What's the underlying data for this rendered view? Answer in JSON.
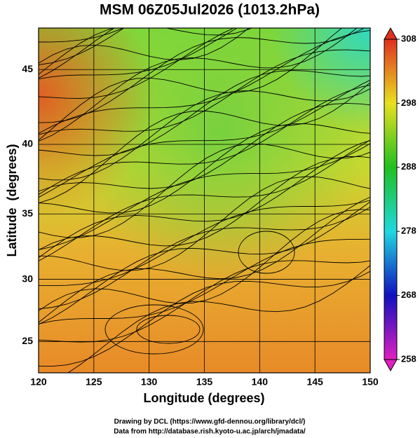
{
  "chart_data": {
    "type": "map",
    "title": "MSM 06Z05Jul2026 (1013.2hPa)",
    "x_label": "Longitude (degrees)",
    "y_label": "Latitude  (degrees)",
    "xlim": [
      120,
      150
    ],
    "ylim": [
      22.4,
      47.6
    ],
    "xticks": [
      120,
      125,
      130,
      135,
      140,
      145,
      150
    ],
    "yticks": [
      25,
      30,
      35,
      40,
      45
    ],
    "projection": "mercator",
    "grid": true,
    "colorbar": {
      "lim": [
        258,
        308
      ],
      "ticks": [
        258,
        268,
        278,
        288,
        298,
        308
      ],
      "colors": [
        "#e020c0",
        "#1010c0",
        "#20d8e0",
        "#20c020",
        "#e8e020",
        "#e03020"
      ]
    }
  },
  "footer": [
    "Drawing by DCL (https://www.gfd-dennou.org/library/dcl/)",
    "Data from http://database.rish.kyoto-u.ac.jp/arch/jmadata/"
  ]
}
